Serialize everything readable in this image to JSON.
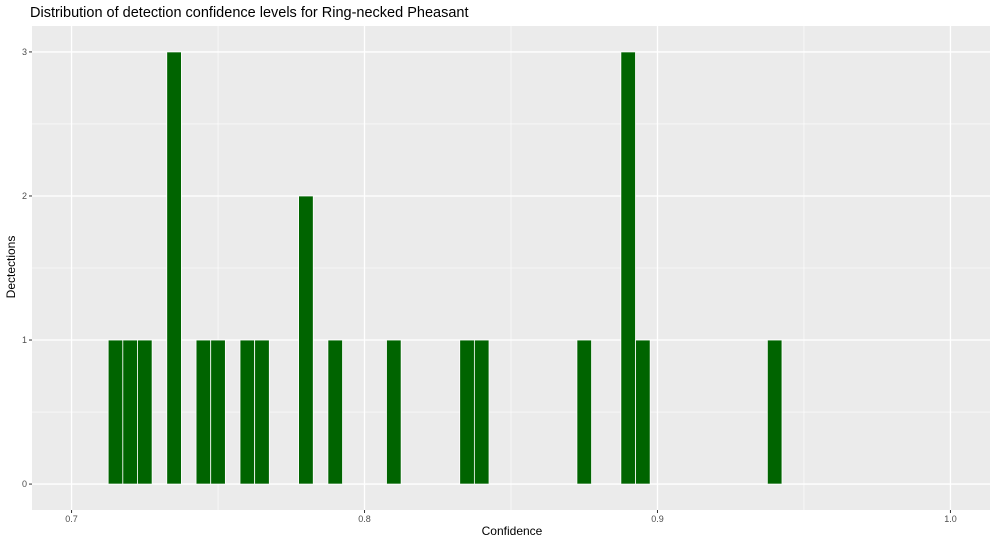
{
  "chart_data": {
    "type": "bar",
    "title": "Distribution of detection confidence levels for Ring-necked Pheasant",
    "xlabel": "Confidence",
    "ylabel": "Dectections",
    "xlim": [
      0.6865,
      1.0135
    ],
    "ylim": [
      -0.18,
      3.18
    ],
    "xticks": [
      "0.7",
      "0.8",
      "0.9",
      "1.0"
    ],
    "xtick_values": [
      0.7,
      0.8,
      0.9,
      1.0
    ],
    "yticks": [
      "0",
      "1",
      "2",
      "3"
    ],
    "ytick_values": [
      0,
      1,
      2,
      3
    ],
    "bin_width": 0.005,
    "bins": [
      {
        "x": 0.715,
        "count": 1
      },
      {
        "x": 0.72,
        "count": 1
      },
      {
        "x": 0.725,
        "count": 1
      },
      {
        "x": 0.735,
        "count": 3
      },
      {
        "x": 0.745,
        "count": 1
      },
      {
        "x": 0.75,
        "count": 1
      },
      {
        "x": 0.76,
        "count": 1
      },
      {
        "x": 0.765,
        "count": 1
      },
      {
        "x": 0.78,
        "count": 2
      },
      {
        "x": 0.79,
        "count": 1
      },
      {
        "x": 0.81,
        "count": 1
      },
      {
        "x": 0.835,
        "count": 1
      },
      {
        "x": 0.84,
        "count": 1
      },
      {
        "x": 0.875,
        "count": 1
      },
      {
        "x": 0.89,
        "count": 3
      },
      {
        "x": 0.895,
        "count": 1
      },
      {
        "x": 0.94,
        "count": 1
      }
    ],
    "grid": true,
    "legend": "none",
    "colors": {
      "bar_fill": "#006400",
      "panel_background": "#ebebeb",
      "grid_line": "#ffffff"
    }
  }
}
